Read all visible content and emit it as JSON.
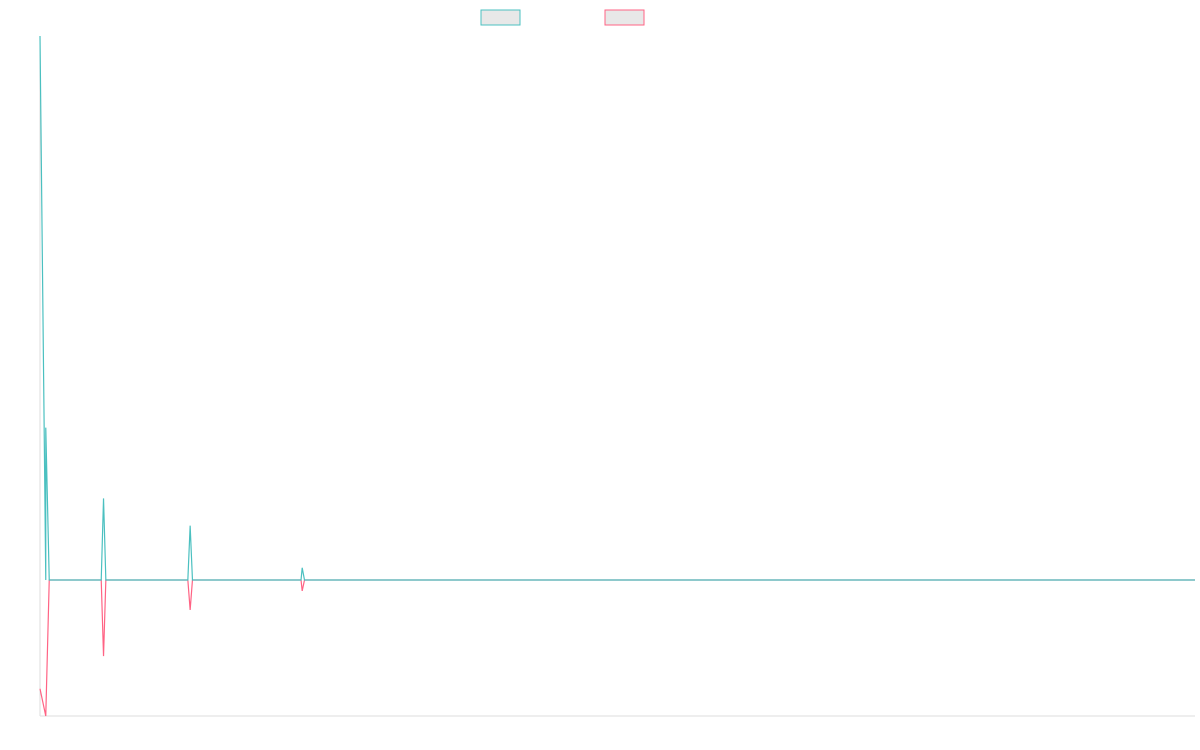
{
  "chart_data": {
    "type": "line",
    "title": "",
    "xlabel": "",
    "ylabel": "",
    "grid": false,
    "legend_position": "top-center",
    "colors": {
      "series_a": "#4bc0c0",
      "series_b": "#ff6384",
      "legend_fill": "#e8e8e8",
      "axis": "#dddddd"
    },
    "xlim": [
      0,
      1000
    ],
    "ylim": [
      -100,
      400
    ],
    "series": [
      {
        "values": [
          [
            0,
            400
          ],
          [
            5,
            0
          ],
          [
            5,
            112
          ],
          [
            8,
            0
          ],
          [
            53,
            0
          ],
          [
            55,
            60
          ],
          [
            57,
            0
          ],
          [
            128,
            0
          ],
          [
            130,
            40
          ],
          [
            132,
            0
          ],
          [
            180,
            0
          ],
          [
            183,
            0
          ],
          [
            226,
            0
          ],
          [
            227,
            9
          ],
          [
            229,
            0
          ],
          [
            1000,
            0
          ]
        ]
      },
      {
        "values": [
          [
            0,
            -80
          ],
          [
            5,
            -100
          ],
          [
            8,
            0
          ],
          [
            53,
            0
          ],
          [
            55,
            -56
          ],
          [
            57,
            0
          ],
          [
            128,
            0
          ],
          [
            130,
            -22
          ],
          [
            132,
            0
          ],
          [
            180,
            0
          ],
          [
            183,
            0
          ],
          [
            226,
            0
          ],
          [
            227,
            -8
          ],
          [
            229,
            0
          ],
          [
            1000,
            0
          ]
        ]
      }
    ]
  }
}
